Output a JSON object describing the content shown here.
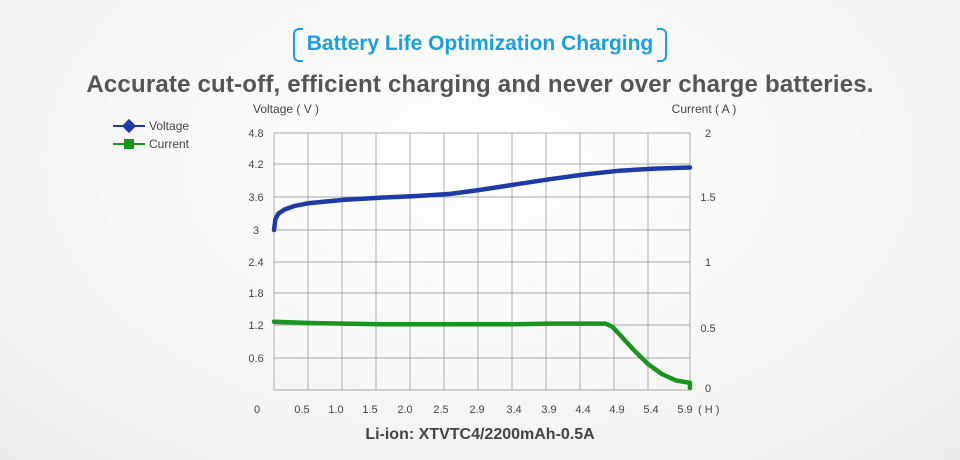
{
  "header": {
    "title": "Battery Life Optimization Charging",
    "subtitle": "Accurate cut-off, efficient charging and never over charge batteries."
  },
  "footer": {
    "caption": "Li-ion: XTVTC4/2200mAh-0.5A"
  },
  "colors": {
    "title": "#1aa0e0",
    "voltage": "#1e3aa8",
    "current": "#16951f",
    "grid": "#8f8f8f"
  },
  "chart_data": {
    "type": "line",
    "ylabel_left": "Voltage ( V )",
    "ylabel_right": "Current ( A )",
    "x_unit_label": "( H )",
    "x_ticks": [
      "0",
      "0.5",
      "1.0",
      "1.5",
      "2.0",
      "2.5",
      "2.9",
      "3.4",
      "3.9",
      "4.4",
      "4.9",
      "5.4",
      "5.9"
    ],
    "y_left_ticks": [
      "4.8",
      "4.2",
      "3.6",
      "3",
      "2.4",
      "1.8",
      "1.2",
      "0.6"
    ],
    "y_right_ticks": [
      "2",
      "1.5",
      "1",
      "0.5",
      "0"
    ],
    "y_left_range": [
      0.6,
      4.8
    ],
    "y_right_range": [
      0,
      2
    ],
    "legend_position": "top-left",
    "grid": true,
    "series": [
      {
        "name": "Voltage",
        "axis": "left",
        "marker": "diamond",
        "color": "#1e3aa8",
        "points": [
          [
            0,
            3.0
          ],
          [
            0.02,
            3.2
          ],
          [
            0.06,
            3.3
          ],
          [
            0.15,
            3.38
          ],
          [
            0.3,
            3.45
          ],
          [
            0.5,
            3.5
          ],
          [
            1.0,
            3.56
          ],
          [
            1.5,
            3.6
          ],
          [
            2.0,
            3.63
          ],
          [
            2.5,
            3.67
          ],
          [
            2.9,
            3.74
          ],
          [
            3.4,
            3.84
          ],
          [
            3.9,
            3.94
          ],
          [
            4.4,
            4.03
          ],
          [
            4.9,
            4.1
          ],
          [
            5.4,
            4.14
          ],
          [
            5.9,
            4.16
          ]
        ]
      },
      {
        "name": "Current",
        "axis": "right",
        "marker": "square",
        "color": "#16951f",
        "points": [
          [
            0,
            0.52
          ],
          [
            0.5,
            0.51
          ],
          [
            1.0,
            0.505
          ],
          [
            1.5,
            0.5
          ],
          [
            2.0,
            0.5
          ],
          [
            2.5,
            0.5
          ],
          [
            2.9,
            0.5
          ],
          [
            3.4,
            0.5
          ],
          [
            3.9,
            0.505
          ],
          [
            4.4,
            0.505
          ],
          [
            4.7,
            0.505
          ],
          [
            4.8,
            0.48
          ],
          [
            4.9,
            0.42
          ],
          [
            5.1,
            0.3
          ],
          [
            5.3,
            0.19
          ],
          [
            5.5,
            0.11
          ],
          [
            5.7,
            0.06
          ],
          [
            5.9,
            0.04
          ],
          [
            5.9,
            0.0
          ]
        ]
      }
    ]
  }
}
